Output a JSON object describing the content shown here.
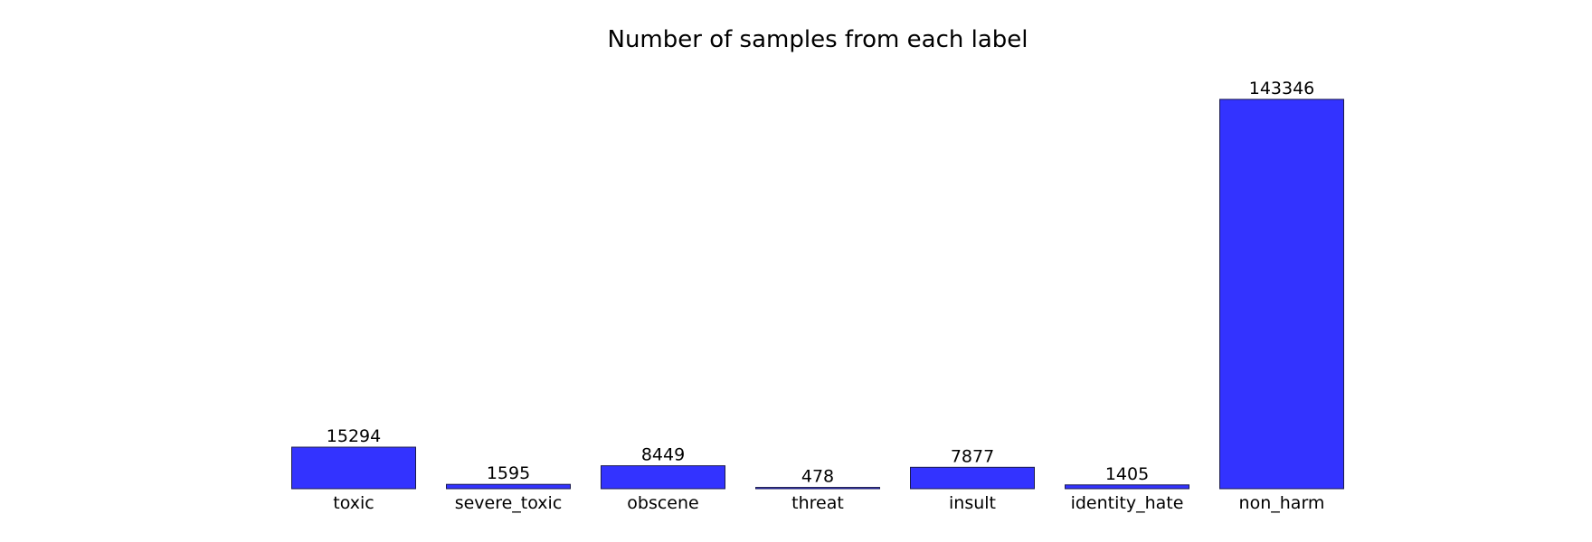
{
  "chart_data": {
    "type": "bar",
    "title": "Number of samples from each label",
    "xlabel": "",
    "ylabel": "",
    "categories": [
      "toxic",
      "severe_toxic",
      "obscene",
      "threat",
      "insult",
      "identity_hate",
      "non_harm"
    ],
    "values": [
      15294,
      1595,
      8449,
      478,
      7877,
      1405,
      143346
    ],
    "ylim": [
      0,
      150000
    ],
    "grid": false,
    "legend": "none",
    "bar_color": "#3333ff",
    "edge_color": "#1a1a4d"
  }
}
